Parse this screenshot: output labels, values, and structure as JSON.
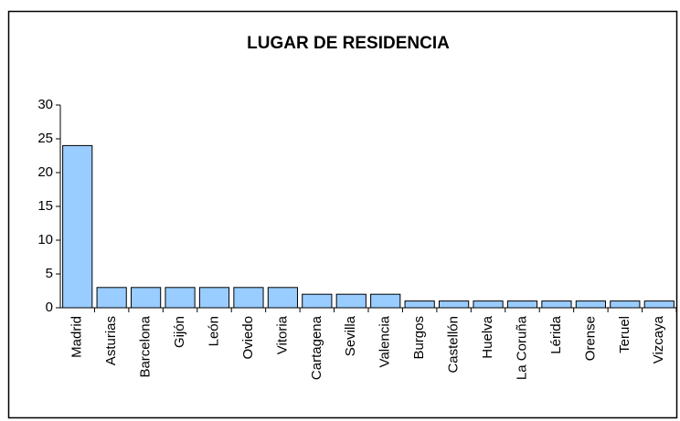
{
  "chart_data": {
    "type": "bar",
    "title": "LUGAR DE RESIDENCIA",
    "categories": [
      "Madrid",
      "Asturias",
      "Barcelona",
      "Gijón",
      "León",
      "Oviedo",
      "Vitoria",
      "Cartagena",
      "Sevilla",
      "Valencia",
      "Burgos",
      "Castellón",
      "Huelva",
      "La Coruña",
      "Lérida",
      "Orense",
      "Teruel",
      "Vizcaya"
    ],
    "values": [
      24,
      3,
      3,
      3,
      3,
      3,
      3,
      2,
      2,
      2,
      1,
      1,
      1,
      1,
      1,
      1,
      1,
      1
    ],
    "color": "#99ccff",
    "ylim": [
      0,
      30
    ],
    "yticks": [
      0,
      5,
      10,
      15,
      20,
      25,
      30
    ],
    "grid": false
  }
}
